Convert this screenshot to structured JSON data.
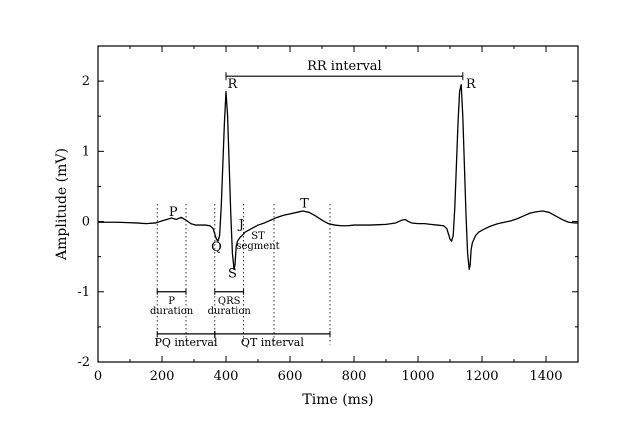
{
  "chart_data": {
    "type": "line",
    "title": "",
    "xlabel": "Time (ms)",
    "ylabel": "Amplitude (mV)",
    "xlim": [
      0,
      1500
    ],
    "ylim": [
      -2,
      2.5
    ],
    "xticks": [
      0,
      200,
      400,
      600,
      800,
      1000,
      1200,
      1400
    ],
    "yticks": [
      -2,
      -1,
      0,
      1,
      2
    ],
    "grid": false,
    "series": [
      {
        "x": [
          0,
          60,
          120,
          150,
          180,
          200,
          215,
          230,
          245,
          260,
          275,
          290,
          305,
          320,
          335,
          350,
          360,
          365,
          370,
          375,
          380,
          385,
          390,
          395,
          400,
          405,
          410,
          415,
          420,
          425,
          428,
          432,
          436,
          440,
          445,
          450,
          460,
          480,
          500,
          520,
          540,
          560,
          580,
          600,
          620,
          640,
          660,
          680,
          700,
          720,
          740,
          760,
          780,
          800,
          850,
          900,
          930,
          950,
          960,
          970,
          980,
          1000,
          1020,
          1040,
          1060,
          1080,
          1090,
          1100,
          1105,
          1110,
          1115,
          1120,
          1125,
          1130,
          1135,
          1140,
          1145,
          1150,
          1155,
          1160,
          1163,
          1166,
          1170,
          1175,
          1180,
          1190,
          1210,
          1230,
          1250,
          1270,
          1290,
          1310,
          1330,
          1350,
          1370,
          1390,
          1410,
          1430,
          1450,
          1470,
          1490,
          1500
        ],
        "y": [
          -0.01,
          -0.01,
          -0.02,
          -0.03,
          -0.02,
          0.01,
          0.03,
          0.05,
          0.03,
          0.06,
          0.02,
          -0.03,
          -0.05,
          -0.05,
          -0.05,
          -0.06,
          -0.1,
          -0.18,
          -0.25,
          -0.28,
          -0.2,
          0.2,
          0.8,
          1.4,
          1.85,
          1.5,
          0.8,
          0.1,
          -0.45,
          -0.68,
          -0.62,
          -0.35,
          -0.28,
          -0.25,
          -0.22,
          -0.2,
          -0.15,
          -0.1,
          -0.05,
          -0.02,
          0.02,
          0.06,
          0.09,
          0.11,
          0.13,
          0.15,
          0.13,
          0.08,
          0.02,
          -0.03,
          -0.05,
          -0.06,
          -0.06,
          -0.05,
          -0.05,
          -0.04,
          -0.02,
          0.02,
          0.03,
          0.0,
          -0.02,
          -0.03,
          -0.03,
          -0.04,
          -0.05,
          -0.06,
          -0.1,
          -0.25,
          -0.28,
          -0.2,
          0.2,
          0.8,
          1.4,
          1.85,
          1.95,
          1.5,
          0.8,
          0.1,
          -0.45,
          -0.68,
          -0.62,
          -0.4,
          -0.3,
          -0.25,
          -0.2,
          -0.15,
          -0.1,
          -0.06,
          -0.03,
          -0.01,
          0.01,
          0.04,
          0.08,
          0.12,
          0.14,
          0.15,
          0.13,
          0.08,
          0.03,
          -0.01,
          -0.02,
          -0.02
        ]
      }
    ],
    "annotations": {
      "waves": [
        {
          "label": "P",
          "x": 235,
          "y": 0.08
        },
        {
          "label": "Q",
          "x": 370,
          "y": -0.42
        },
        {
          "label": "R",
          "x": 420,
          "y": 1.9
        },
        {
          "label": "S",
          "x": 420,
          "y": -0.8
        },
        {
          "label": "J",
          "x": 448,
          "y": -0.1
        },
        {
          "label": "T",
          "x": 645,
          "y": 0.2
        },
        {
          "label": "R",
          "x": 1165,
          "y": 1.9
        }
      ],
      "rr_interval": {
        "label": "RR interval",
        "x_start": 400,
        "x_end": 1140,
        "y": 2.07
      },
      "dotted_markers_x": [
        185,
        275,
        365,
        455,
        550,
        725
      ],
      "intervals": [
        {
          "id": "p-duration",
          "label_lines": [
            "P",
            "duration"
          ],
          "x_start": 185,
          "x_end": 275,
          "y": -1.0
        },
        {
          "id": "qrs-duration",
          "label_lines": [
            "QRS",
            "duration"
          ],
          "x_start": 365,
          "x_end": 455,
          "y": -1.0
        },
        {
          "id": "pq-interval",
          "label_lines": [
            "PQ interval"
          ],
          "x_start": 185,
          "x_end": 365,
          "y": -1.6
        },
        {
          "id": "qt-interval",
          "label_lines": [
            "QT interval"
          ],
          "x_start": 365,
          "x_end": 725,
          "y": -1.6
        }
      ],
      "st_segment": {
        "label_lines": [
          "ST",
          "segment"
        ],
        "x": 500,
        "y": -0.25
      }
    }
  }
}
